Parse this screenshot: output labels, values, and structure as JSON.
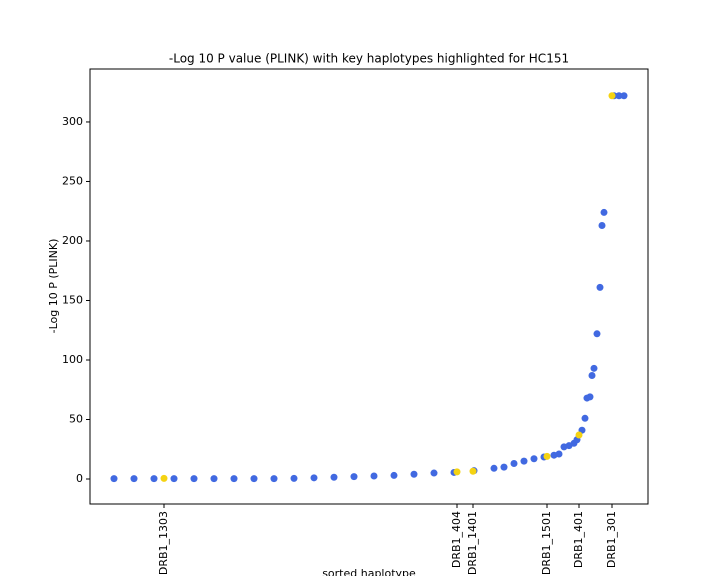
{
  "chart_data": {
    "type": "scatter",
    "title": "-Log 10 P value (PLINK) with key haplotypes highlighted for HC151",
    "x_label": "sorted haplotype",
    "y_label": "-Log 10 P (PLINK)",
    "xlim": [
      -24,
      534
    ],
    "ylim": [
      -21,
      344.5
    ],
    "xticks": [
      {
        "value": 50,
        "label": "DRB1_1303"
      },
      {
        "value": 343,
        "label": "DRB1_404"
      },
      {
        "value": 359,
        "label": "DRB1_1401"
      },
      {
        "value": 433,
        "label": "DRB1_1501"
      },
      {
        "value": 465,
        "label": "DRB1_401"
      },
      {
        "value": 498,
        "label": "DRB1_301"
      }
    ],
    "yticks": [
      0,
      50,
      100,
      150,
      200,
      250,
      300
    ],
    "series": [
      {
        "color": "#4169e1",
        "x": [
          0,
          20,
          40,
          60,
          80,
          100,
          120,
          140,
          160,
          180,
          200,
          220,
          240,
          260,
          280,
          300,
          320,
          340,
          360,
          380,
          390,
          400,
          410,
          420,
          430,
          440,
          445,
          450,
          455,
          460,
          463,
          468,
          471,
          473,
          476,
          478,
          480,
          483,
          486,
          488,
          490,
          500,
          505,
          510
        ],
        "values": [
          0.3,
          0.3,
          0.3,
          0.3,
          0.3,
          0.3,
          0.3,
          0.3,
          0.3,
          0.5,
          1,
          1.5,
          2,
          2.5,
          3,
          4,
          5,
          5.5,
          7,
          9,
          10,
          13,
          15,
          17,
          18.5,
          20,
          21,
          27,
          28,
          30,
          33,
          41,
          51,
          68,
          69,
          87,
          93,
          122,
          161,
          213,
          224,
          322,
          322,
          322
        ]
      },
      {
        "color": "#f5d312",
        "x": [
          50,
          343,
          359,
          433,
          465,
          498
        ],
        "values": [
          0.5,
          6,
          6.5,
          19,
          37,
          322
        ]
      }
    ]
  }
}
